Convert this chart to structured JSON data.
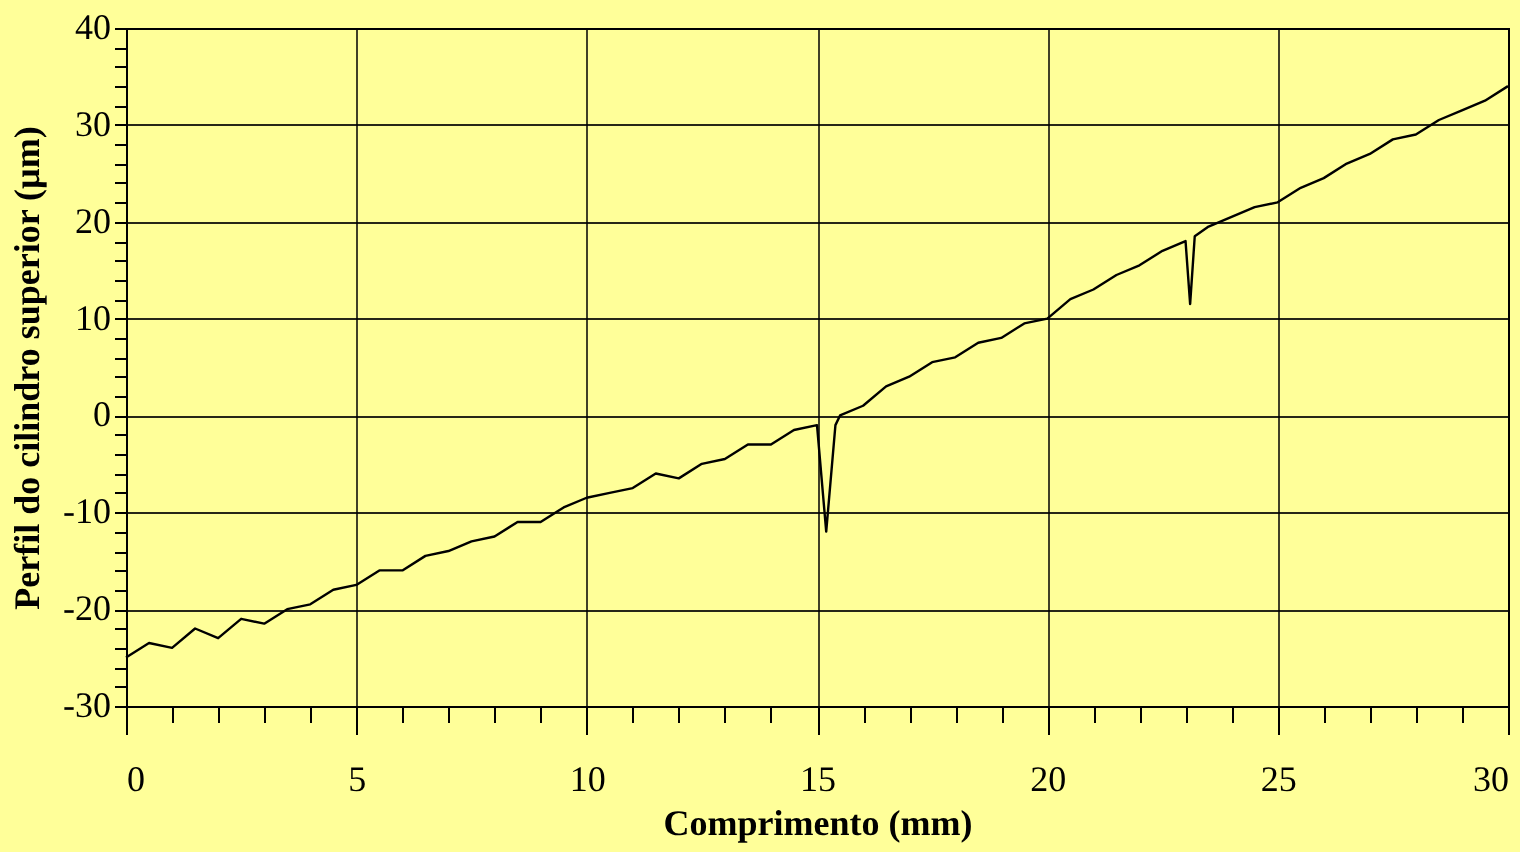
{
  "chart_data": {
    "type": "line",
    "xlabel": "Comprimento (mm)",
    "ylabel": "Perfil do cilindro superior (µm)",
    "x": [
      0,
      0.5,
      1,
      1.5,
      2,
      2.5,
      3,
      3.5,
      4,
      4.5,
      5,
      5.5,
      6,
      6.5,
      7,
      7.5,
      8,
      8.5,
      9,
      9.5,
      10,
      10.5,
      11,
      11.5,
      12,
      12.5,
      13,
      13.5,
      14,
      14.5,
      15,
      15.2,
      15.4,
      15.5,
      16,
      16.5,
      17,
      17.5,
      18,
      18.5,
      19,
      19.5,
      20,
      20.5,
      21,
      21.5,
      22,
      22.5,
      23,
      23.1,
      23.2,
      23.5,
      24,
      24.5,
      25,
      25.5,
      26,
      26.5,
      27,
      27.5,
      28,
      28.5,
      29,
      29.5,
      30
    ],
    "series": [
      {
        "color": "#000000",
        "values": [
          -25,
          -23.5,
          -24,
          -22,
          -23,
          -21,
          -21.5,
          -20,
          -19.5,
          -18,
          -17.5,
          -16,
          -16,
          -14.5,
          -14,
          -13,
          -12.5,
          -11,
          -11,
          -9.5,
          -8.5,
          -8,
          -7.5,
          -6,
          -6.5,
          -5,
          -4.5,
          -3,
          -3,
          -1.5,
          -1,
          -12,
          -1,
          0,
          1,
          3,
          4,
          5.5,
          6,
          7.5,
          8,
          9.5,
          10,
          12,
          13,
          14.5,
          15.5,
          17,
          18,
          11.5,
          18.5,
          19.5,
          20.5,
          21.5,
          22,
          23.5,
          24.5,
          26,
          27,
          28.5,
          29,
          30.5,
          31.5,
          32.5,
          34
        ]
      }
    ],
    "xlim": [
      0,
      30
    ],
    "ylim": [
      -30,
      40
    ],
    "xticks": [
      0,
      {
        "value": 1,
        "label": null
      },
      {
        "value": 2,
        "label": null
      },
      {
        "value": 3,
        "label": null
      },
      {
        "value": 4,
        "label": null
      },
      5,
      {
        "value": 6,
        "label": null
      },
      {
        "value": 7,
        "label": null
      },
      {
        "value": 8,
        "label": null
      },
      {
        "value": 9,
        "label": null
      },
      10,
      {
        "value": 11,
        "label": null
      },
      {
        "value": 12,
        "label": null
      },
      {
        "value": 13,
        "label": null
      },
      {
        "value": 14,
        "label": null
      },
      15,
      {
        "value": 16,
        "label": null
      },
      {
        "value": 17,
        "label": null
      },
      {
        "value": 18,
        "label": null
      },
      {
        "value": 19,
        "label": null
      },
      20,
      {
        "value": 21,
        "label": null
      },
      {
        "value": 22,
        "label": null
      },
      {
        "value": 23,
        "label": null
      },
      {
        "value": 24,
        "label": null
      },
      25,
      {
        "value": 26,
        "label": null
      },
      {
        "value": 27,
        "label": null
      },
      {
        "value": 28,
        "label": null
      },
      {
        "value": 29,
        "label": null
      },
      30
    ],
    "yticks": [
      -30,
      {
        "value": -28,
        "label": null
      },
      {
        "value": -26,
        "label": null
      },
      {
        "value": -24,
        "label": null
      },
      {
        "value": -22,
        "label": null
      },
      -20,
      {
        "value": -18,
        "label": null
      },
      {
        "value": -16,
        "label": null
      },
      {
        "value": -14,
        "label": null
      },
      {
        "value": -12,
        "label": null
      },
      -10,
      {
        "value": -8,
        "label": null
      },
      {
        "value": -6,
        "label": null
      },
      {
        "value": -4,
        "label": null
      },
      {
        "value": -2,
        "label": null
      },
      0,
      {
        "value": 2,
        "label": null
      },
      {
        "value": 4,
        "label": null
      },
      {
        "value": 6,
        "label": null
      },
      {
        "value": 8,
        "label": null
      },
      10,
      {
        "value": 12,
        "label": null
      },
      {
        "value": 14,
        "label": null
      },
      {
        "value": 16,
        "label": null
      },
      {
        "value": 18,
        "label": null
      },
      20,
      {
        "value": 22,
        "label": null
      },
      {
        "value": 24,
        "label": null
      },
      {
        "value": 26,
        "label": null
      },
      {
        "value": 28,
        "label": null
      },
      30,
      {
        "value": 32,
        "label": null
      },
      {
        "value": 34,
        "label": null
      },
      {
        "value": 36,
        "label": null
      },
      {
        "value": 38,
        "label": null
      },
      40
    ],
    "grid": true,
    "line_style": "solid",
    "marker": "none"
  }
}
